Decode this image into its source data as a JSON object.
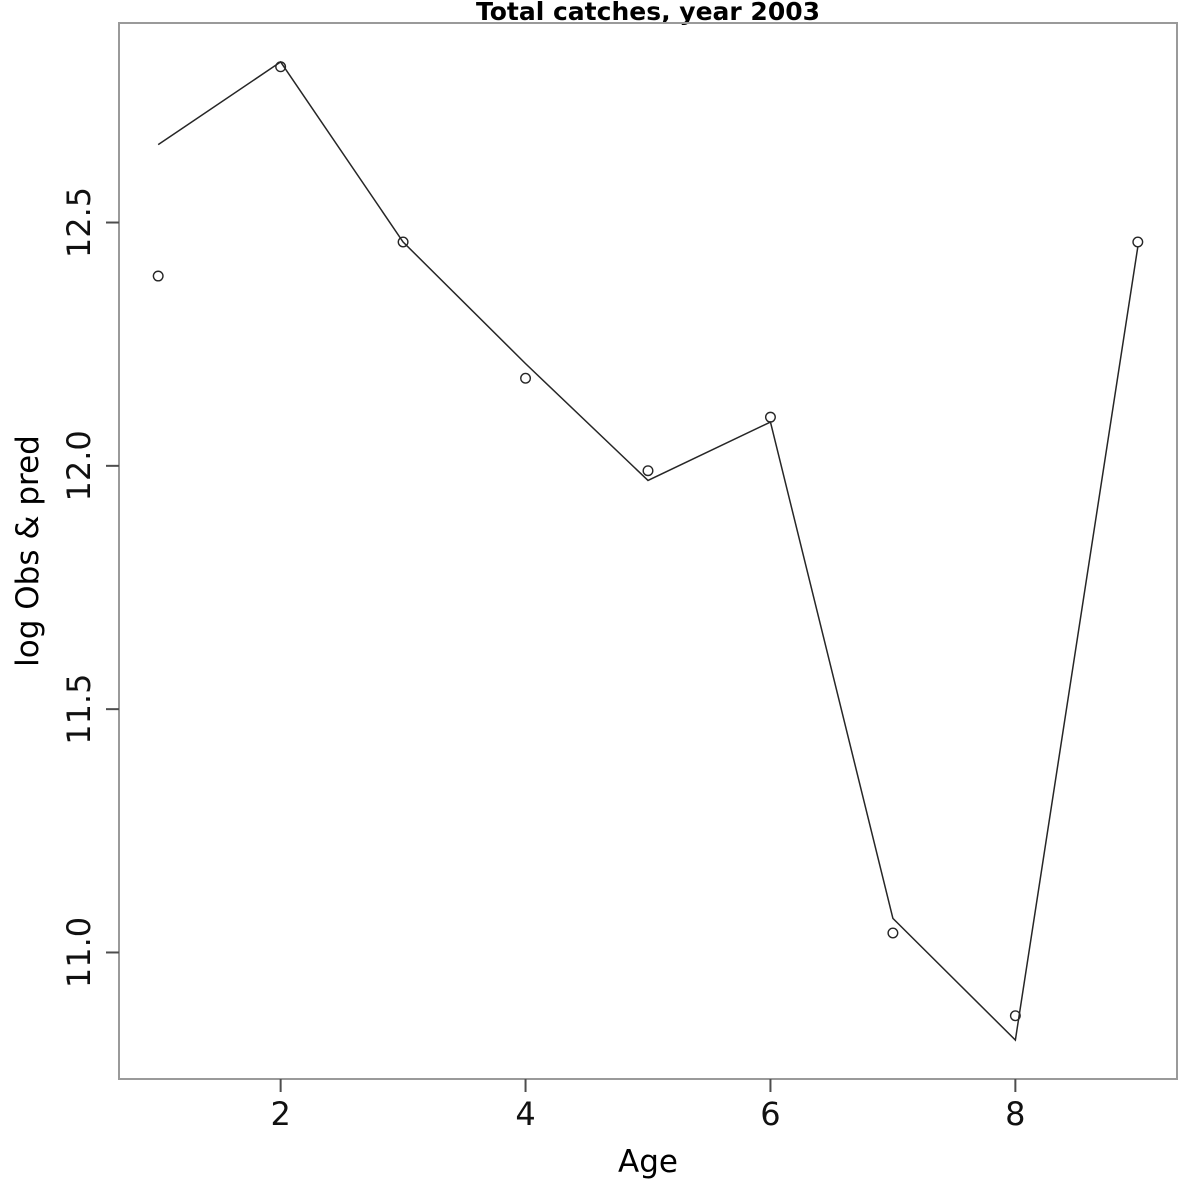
{
  "chart_data": {
    "type": "line",
    "title": "Total catches, year 2003",
    "xlabel": "Age",
    "ylabel": "log Obs & pred",
    "x": [
      1,
      2,
      3,
      4,
      5,
      6,
      7,
      8,
      9
    ],
    "series": [
      {
        "name": "observed",
        "style": "points-open-circle",
        "values": [
          12.39,
          12.82,
          12.46,
          12.18,
          11.99,
          12.1,
          11.04,
          10.87,
          12.46
        ]
      },
      {
        "name": "predicted",
        "style": "line",
        "values": [
          12.66,
          12.83,
          12.46,
          12.21,
          11.97,
          12.09,
          11.07,
          10.82,
          12.45
        ]
      }
    ],
    "xlim": [
      0.68,
      9.32
    ],
    "ylim": [
      10.74,
      12.91
    ],
    "x_ticks": {
      "values": [
        2,
        4,
        6,
        8
      ],
      "labels": [
        "2",
        "4",
        "6",
        "8"
      ]
    },
    "y_ticks": {
      "values": [
        11.0,
        11.5,
        12.0,
        12.5
      ],
      "labels": [
        "11.0",
        "11.5",
        "12.0",
        "12.5"
      ]
    },
    "grid": false,
    "legend": "none",
    "colors": {
      "box": "#9a9a9a",
      "tick": "#4d4d4d",
      "line": "#262626",
      "point": "#262626",
      "text": "#000000",
      "background": "#ffffff"
    }
  }
}
